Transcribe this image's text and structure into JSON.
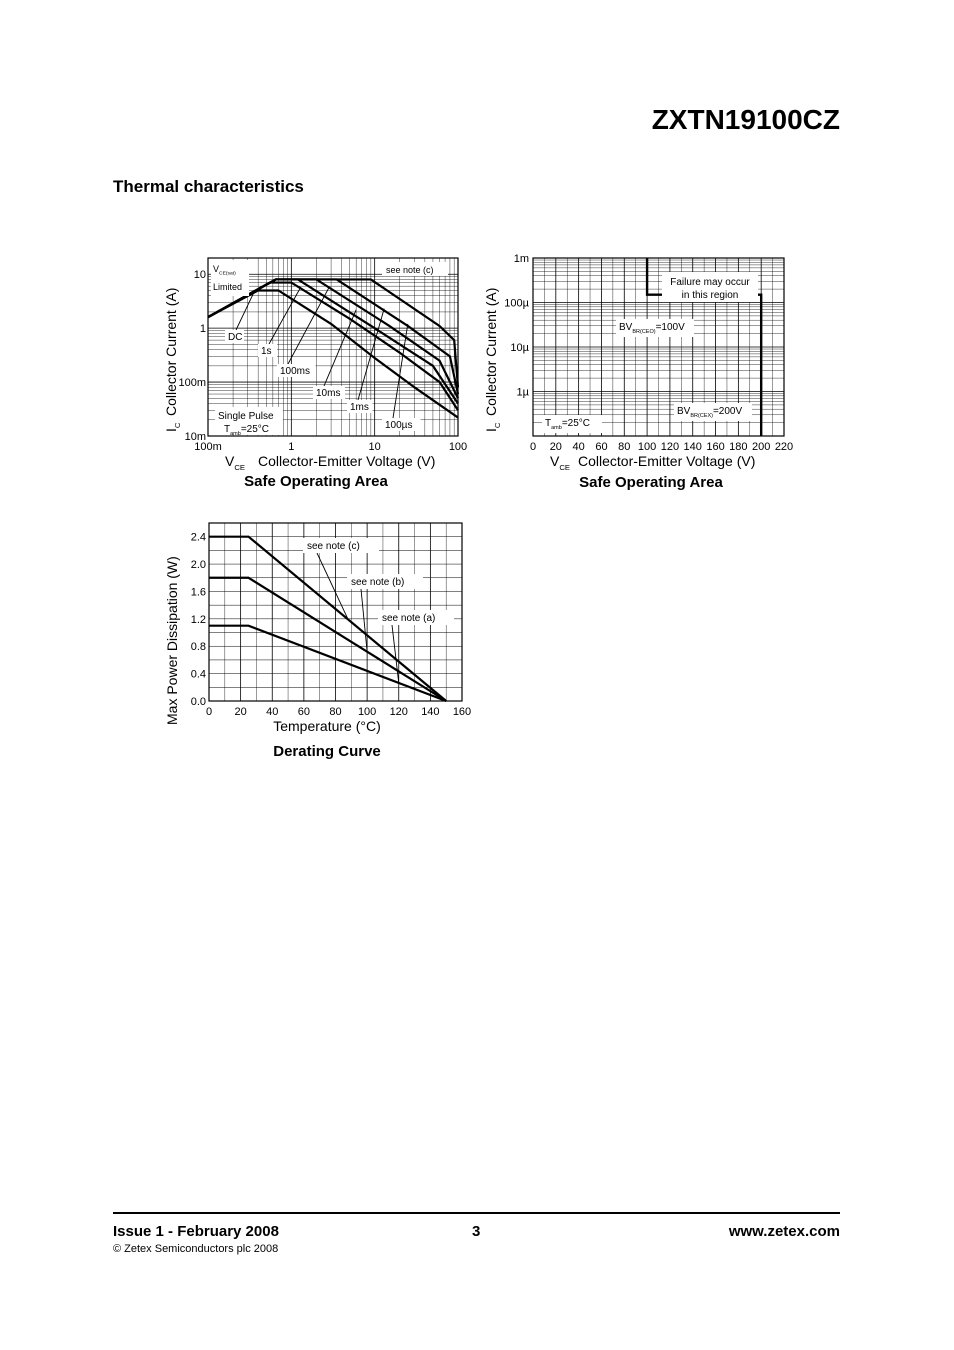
{
  "header": {
    "part_number": "ZXTN19100CZ",
    "section_title": "Thermal characteristics"
  },
  "footer": {
    "issue": "Issue 1 - February 2008",
    "copyright": "© Zetex Semiconductors plc 2008",
    "page": "3",
    "website": "www.zetex.com"
  },
  "chart_data": [
    {
      "type": "line",
      "title": "Safe Operating Area",
      "x_scale": "log",
      "y_scale": "log",
      "xlim": [
        0.1,
        100
      ],
      "ylim": [
        0.01,
        20
      ],
      "grid": true,
      "x_ticks": [
        {
          "v": 0.1,
          "label": "100m"
        },
        {
          "v": 1,
          "label": "1"
        },
        {
          "v": 10,
          "label": "10"
        },
        {
          "v": 100,
          "label": "100"
        }
      ],
      "y_ticks": [
        {
          "v": 0.01,
          "label": "10m"
        },
        {
          "v": 0.1,
          "label": "100m"
        },
        {
          "v": 1,
          "label": "1"
        },
        {
          "v": 10,
          "label": "10"
        }
      ],
      "xlabel": {
        "sym": "V",
        "sub": "CE",
        "text": "Collector-Emitter Voltage (V)"
      },
      "ylabel": {
        "sym": "I",
        "sub": "C",
        "text": "Collector Current (A)"
      },
      "series": [
        {
          "name": "DC",
          "points": [
            [
              0.1,
              1.6
            ],
            [
              0.4,
              5
            ],
            [
              0.7,
              5
            ],
            [
              3,
              1.2
            ],
            [
              10,
              0.28
            ],
            [
              30,
              0.08
            ],
            [
              100,
              0.022
            ]
          ]
        },
        {
          "name": "1s",
          "points": [
            [
              0.1,
              1.6
            ],
            [
              0.55,
              7
            ],
            [
              1.0,
              7
            ],
            [
              5,
              1.5
            ],
            [
              20,
              0.35
            ],
            [
              60,
              0.1
            ],
            [
              100,
              0.03
            ]
          ]
        },
        {
          "name": "100ms",
          "points": [
            [
              0.1,
              1.6
            ],
            [
              0.65,
              8
            ],
            [
              1.2,
              8
            ],
            [
              10,
              1.0
            ],
            [
              50,
              0.2
            ],
            [
              100,
              0.04
            ]
          ]
        },
        {
          "name": "10ms",
          "points": [
            [
              0.1,
              1.6
            ],
            [
              0.65,
              8
            ],
            [
              2.0,
              8
            ],
            [
              15,
              1.1
            ],
            [
              60,
              0.25
            ],
            [
              100,
              0.05
            ]
          ]
        },
        {
          "name": "1ms",
          "points": [
            [
              0.1,
              1.6
            ],
            [
              0.65,
              8
            ],
            [
              3.5,
              8
            ],
            [
              25,
              1.1
            ],
            [
              80,
              0.3
            ],
            [
              100,
              0.06
            ]
          ]
        },
        {
          "name": "100µs",
          "points": [
            [
              0.1,
              1.6
            ],
            [
              0.65,
              8
            ],
            [
              9,
              8
            ],
            [
              60,
              1.1
            ],
            [
              90,
              0.6
            ],
            [
              100,
              0.08
            ]
          ]
        }
      ],
      "annotations": {
        "vce_sat": {
          "sym": "V",
          "sub": "CE(sat)",
          "line2": "Limited"
        },
        "note": "see note (c)",
        "pulse_title": "Single Pulse",
        "temp": {
          "sym": "T",
          "sub": "amb",
          "rest": "=25°C"
        },
        "labels": [
          "DC",
          "1s",
          "100ms",
          "10ms",
          "1ms",
          "100µs"
        ]
      }
    },
    {
      "type": "line",
      "title": "Safe Operating Area",
      "x_scale": "linear",
      "y_scale": "log",
      "xlim": [
        0,
        220
      ],
      "ylim": [
        1e-07,
        0.001
      ],
      "grid": true,
      "x_ticks": [
        0,
        20,
        40,
        60,
        80,
        100,
        120,
        140,
        160,
        180,
        200,
        220
      ],
      "y_ticks": [
        {
          "v": 1e-06,
          "label": "1µ"
        },
        {
          "v": 1e-05,
          "label": "10µ"
        },
        {
          "v": 0.0001,
          "label": "100µ"
        },
        {
          "v": 0.001,
          "label": "1m"
        }
      ],
      "xlabel": {
        "sym": "V",
        "sub": "CE",
        "text": "Collector-Emitter Voltage (V)"
      },
      "ylabel": {
        "sym": "I",
        "sub": "C",
        "text": "Collector Current (A)"
      },
      "series": [
        {
          "name": "",
          "points": [
            [
              100,
              0.001
            ],
            [
              100,
              0.00015
            ],
            [
              200,
              0.00015
            ],
            [
              200,
              1e-07
            ]
          ]
        }
      ],
      "annotations": {
        "failure": [
          "Failure may occur",
          "in this region"
        ],
        "bv_ceo": {
          "sym": "BV",
          "sub": "BR(CEO)",
          "rest": "=100V"
        },
        "bv_cex": {
          "sym": "BV",
          "sub": "BR(CEX)",
          "rest": "=200V"
        },
        "temp": {
          "sym": "T",
          "sub": "amb",
          "rest": "=25°C"
        }
      }
    },
    {
      "type": "line",
      "title": "Derating Curve",
      "xlim": [
        0,
        160
      ],
      "ylim": [
        0,
        2.6
      ],
      "grid": true,
      "x_ticks": [
        0,
        20,
        40,
        60,
        80,
        100,
        120,
        140,
        160
      ],
      "y_ticks": [
        0.0,
        0.4,
        0.8,
        1.2,
        1.6,
        2.0,
        2.4
      ],
      "y_tick_labels": [
        "0.0",
        "0.4",
        "0.8",
        "1.2",
        "1.6",
        "2.0",
        "2.4"
      ],
      "xlabel": "Temperature (°C)",
      "ylabel": "Max Power Dissipation (W)",
      "series": [
        {
          "name": "see note (c)",
          "points": [
            [
              0,
              2.4
            ],
            [
              25,
              2.4
            ],
            [
              150,
              0
            ]
          ]
        },
        {
          "name": "see note (b)",
          "points": [
            [
              0,
              1.8
            ],
            [
              25,
              1.8
            ],
            [
              150,
              0
            ]
          ]
        },
        {
          "name": "see note (a)",
          "points": [
            [
              0,
              1.1
            ],
            [
              25,
              1.1
            ],
            [
              150,
              0
            ]
          ]
        }
      ]
    }
  ]
}
